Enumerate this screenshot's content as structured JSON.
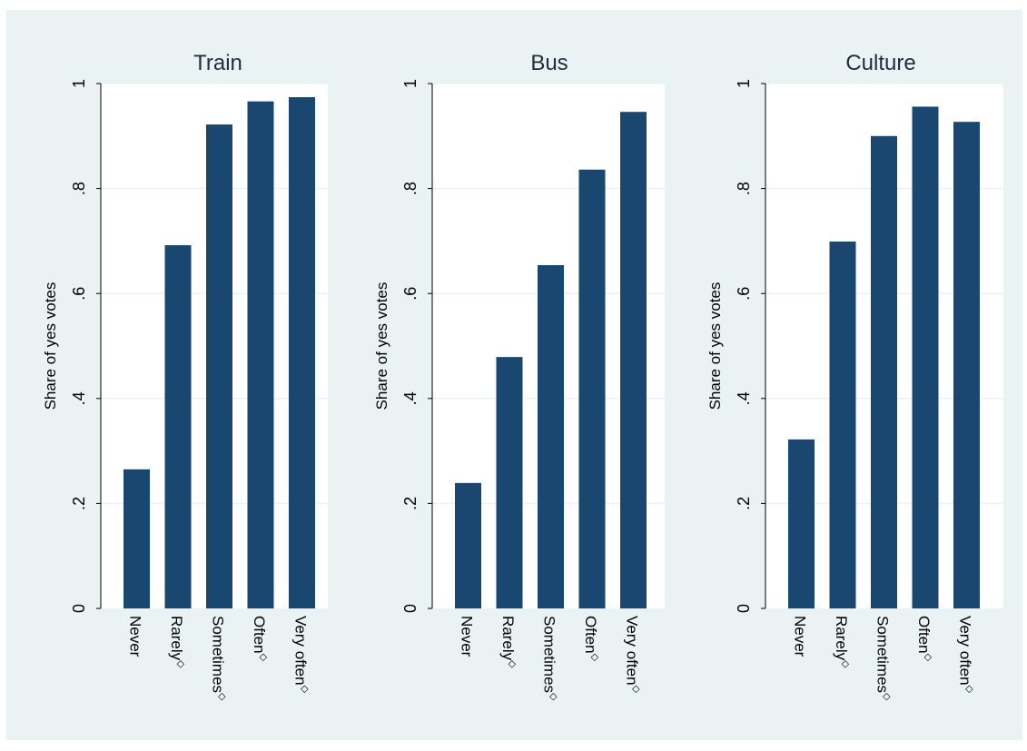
{
  "colors": {
    "page_background": "#ffffff",
    "figure_background": "#eaf2f3",
    "plot_background": "#ffffff",
    "gridline": "#eaf2f3",
    "bar": "#1a476f",
    "title": "#1e2d3e"
  },
  "chart_data": [
    {
      "type": "bar",
      "title": "Train",
      "xlabel": "",
      "ylabel": "Share of yes votes",
      "ylim": [
        0,
        1
      ],
      "yticks": [
        0,
        0.2,
        0.4,
        0.6,
        0.8,
        1
      ],
      "ytick_labels": [
        "0",
        ".2",
        ".4",
        ".6",
        ".8",
        "1"
      ],
      "grid": true,
      "categories": [
        "Never",
        "Rarely",
        "Sometimes",
        "Often",
        "Very often"
      ],
      "category_markers": [
        "",
        "◇",
        "◇",
        "◇",
        "◇"
      ],
      "values": [
        0.265,
        0.692,
        0.922,
        0.966,
        0.974
      ]
    },
    {
      "type": "bar",
      "title": "Bus",
      "xlabel": "",
      "ylabel": "Share of yes votes",
      "ylim": [
        0,
        1
      ],
      "yticks": [
        0,
        0.2,
        0.4,
        0.6,
        0.8,
        1
      ],
      "ytick_labels": [
        "0",
        ".2",
        ".4",
        ".6",
        ".8",
        "1"
      ],
      "grid": true,
      "categories": [
        "Never",
        "Rarely",
        "Sometimes",
        "Often",
        "Very often"
      ],
      "category_markers": [
        "",
        "◇",
        "◇",
        "◇",
        "◇"
      ],
      "values": [
        0.239,
        0.479,
        0.654,
        0.836,
        0.946
      ]
    },
    {
      "type": "bar",
      "title": "Culture",
      "xlabel": "",
      "ylabel": "Share of yes votes",
      "ylim": [
        0,
        1
      ],
      "yticks": [
        0,
        0.2,
        0.4,
        0.6,
        0.8,
        1
      ],
      "ytick_labels": [
        "0",
        ".2",
        ".4",
        ".6",
        ".8",
        "1"
      ],
      "grid": true,
      "categories": [
        "Never",
        "Rarely",
        "Sometimes",
        "Often",
        "Very often"
      ],
      "category_markers": [
        "",
        "◇",
        "◇",
        "◇",
        "◇"
      ],
      "values": [
        0.322,
        0.699,
        0.9,
        0.956,
        0.927
      ]
    }
  ]
}
